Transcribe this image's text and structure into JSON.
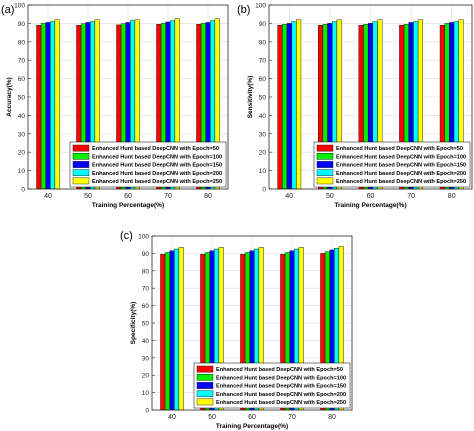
{
  "colors": {
    "series": [
      "#ff0000",
      "#00ee00",
      "#0000ff",
      "#00ffff",
      "#ffff00"
    ],
    "axis": "#262626",
    "grid": "#dddddd"
  },
  "chart_data": [
    {
      "panel_label": "(a)",
      "type": "bar",
      "title": "",
      "xlabel": "Training Percentage(%)",
      "ylabel": "Accuracy(%)",
      "ylim": [
        0,
        100
      ],
      "yticks": [
        0,
        10,
        20,
        30,
        40,
        50,
        60,
        70,
        80,
        90,
        100
      ],
      "categories": [
        "40",
        "50",
        "60",
        "70",
        "80"
      ],
      "grid": true,
      "legend_position": "bottom-right",
      "series": [
        {
          "name": "Enhanced Hunt based DeepCNN with Epoch=50",
          "values": [
            89,
            89,
            89.2,
            89.5,
            89.5
          ]
        },
        {
          "name": "Enhanced Hunt based DeepCNN with Epoch=100",
          "values": [
            90,
            89.8,
            89.8,
            90,
            90
          ]
        },
        {
          "name": "Enhanced Hunt based DeepCNN with Epoch=150",
          "values": [
            90.5,
            90.5,
            90.5,
            90.8,
            90.5
          ]
        },
        {
          "name": "Enhanced Hunt based DeepCNN with Epoch=200",
          "values": [
            91,
            91,
            91.5,
            91.5,
            91.5
          ]
        },
        {
          "name": "Enhanced Hunt based DeepCNN with Epoch=250",
          "values": [
            92,
            92,
            92,
            92.5,
            92.5
          ]
        }
      ]
    },
    {
      "panel_label": "(b)",
      "type": "bar",
      "title": "",
      "xlabel": "Training Percentage(%)",
      "ylabel": "Sensitivity(%)",
      "ylim": [
        0,
        100
      ],
      "yticks": [
        0,
        10,
        20,
        30,
        40,
        50,
        60,
        70,
        80,
        90,
        100
      ],
      "categories": [
        "40",
        "50",
        "60",
        "70",
        "80"
      ],
      "grid": true,
      "legend_position": "bottom-right",
      "series": [
        {
          "name": "Enhanced Hunt based DeepCNN with Epoch=50",
          "values": [
            89,
            89,
            89,
            89,
            89
          ]
        },
        {
          "name": "Enhanced Hunt based DeepCNN with Epoch=100",
          "values": [
            89.5,
            89.5,
            89.5,
            89.5,
            90
          ]
        },
        {
          "name": "Enhanced Hunt based DeepCNN with Epoch=150",
          "values": [
            90,
            90,
            90,
            90.5,
            90.5
          ]
        },
        {
          "name": "Enhanced Hunt based DeepCNN with Epoch=200",
          "values": [
            91,
            91,
            91,
            91,
            91
          ]
        },
        {
          "name": "Enhanced Hunt based DeepCNN with Epoch=250",
          "values": [
            92,
            92,
            92,
            92,
            92
          ]
        }
      ]
    },
    {
      "panel_label": "(c)",
      "type": "bar",
      "title": "",
      "xlabel": "Training Percentage(%)",
      "ylabel": "Specificity(%)",
      "ylim": [
        0,
        100
      ],
      "yticks": [
        0,
        10,
        20,
        30,
        40,
        50,
        60,
        70,
        80,
        90,
        100
      ],
      "categories": [
        "40",
        "50",
        "60",
        "70",
        "80"
      ],
      "grid": true,
      "legend_position": "bottom-right",
      "series": [
        {
          "name": "Enhanced Hunt based DeepCNN with Epoch=50",
          "values": [
            89.5,
            89.5,
            89.5,
            89.5,
            90
          ]
        },
        {
          "name": "Enhanced Hunt based DeepCNN with Epoch=100",
          "values": [
            90.5,
            90.5,
            90.5,
            90.5,
            91
          ]
        },
        {
          "name": "Enhanced Hunt based DeepCNN with Epoch=150",
          "values": [
            91.5,
            91.5,
            91.5,
            91.5,
            92
          ]
        },
        {
          "name": "Enhanced Hunt based DeepCNN with Epoch=200",
          "values": [
            92.5,
            92.5,
            92.5,
            92.5,
            93
          ]
        },
        {
          "name": "Enhanced Hunt based DeepCNN with Epoch=250",
          "values": [
            93.5,
            93.5,
            93.5,
            93.5,
            94
          ]
        }
      ]
    }
  ]
}
